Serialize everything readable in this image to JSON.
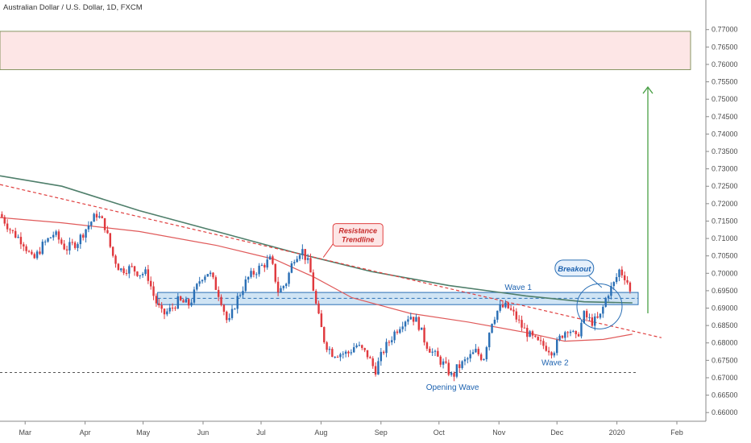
{
  "title": "Australian Dollar / U.S. Dollar, 1D, FXCM",
  "chart_data": {
    "type": "candlestick",
    "ylim": [
      0.6575,
      0.7785
    ],
    "y_ticks": [
      "0.77000",
      "0.76500",
      "0.76000",
      "0.75500",
      "0.75000",
      "0.74500",
      "0.74000",
      "0.73500",
      "0.73000",
      "0.72500",
      "0.72000",
      "0.71500",
      "0.71000",
      "0.70500",
      "0.70000",
      "0.69500",
      "0.69000",
      "0.68500",
      "0.68000",
      "0.67500",
      "0.67000",
      "0.66500",
      "0.66000"
    ],
    "x_labels": [
      {
        "label": "Mar",
        "day": 1
      },
      {
        "label": "Apr",
        "day": 32
      },
      {
        "label": "May",
        "day": 62
      },
      {
        "label": "Jun",
        "day": 93
      },
      {
        "label": "Jul",
        "day": 123
      },
      {
        "label": "Aug",
        "day": 154
      },
      {
        "label": "Sep",
        "day": 185
      },
      {
        "label": "Oct",
        "day": 215
      },
      {
        "label": "Nov",
        "day": 246
      },
      {
        "label": "Dec",
        "day": 276
      },
      {
        "label": "2020",
        "day": 307
      },
      {
        "label": "Feb",
        "day": 338
      }
    ],
    "x_range_days": [
      -12,
      353
    ],
    "closes_anchors": [
      [
        -12,
        0.717
      ],
      [
        -6,
        0.712
      ],
      [
        0,
        0.709
      ],
      [
        5,
        0.7035
      ],
      [
        10,
        0.708
      ],
      [
        16,
        0.7115
      ],
      [
        22,
        0.707
      ],
      [
        28,
        0.709
      ],
      [
        32,
        0.7125
      ],
      [
        38,
        0.717
      ],
      [
        42,
        0.714
      ],
      [
        46,
        0.7055
      ],
      [
        50,
        0.701
      ],
      [
        56,
        0.7015
      ],
      [
        60,
        0.7
      ],
      [
        64,
        0.7
      ],
      [
        68,
        0.6925
      ],
      [
        72,
        0.688
      ],
      [
        76,
        0.6895
      ],
      [
        80,
        0.692
      ],
      [
        86,
        0.691
      ],
      [
        92,
        0.699
      ],
      [
        96,
        0.7005
      ],
      [
        102,
        0.693
      ],
      [
        106,
        0.685
      ],
      [
        110,
        0.692
      ],
      [
        116,
        0.6985
      ],
      [
        122,
        0.7015
      ],
      [
        128,
        0.704
      ],
      [
        132,
        0.6945
      ],
      [
        136,
        0.6975
      ],
      [
        140,
        0.7045
      ],
      [
        144,
        0.707
      ],
      [
        148,
        0.702
      ],
      [
        152,
        0.689
      ],
      [
        156,
        0.68
      ],
      [
        160,
        0.677
      ],
      [
        164,
        0.677
      ],
      [
        168,
        0.677
      ],
      [
        172,
        0.6795
      ],
      [
        178,
        0.6765
      ],
      [
        182,
        0.672
      ],
      [
        186,
        0.6775
      ],
      [
        192,
        0.683
      ],
      [
        196,
        0.686
      ],
      [
        200,
        0.688
      ],
      [
        204,
        0.686
      ],
      [
        208,
        0.68
      ],
      [
        212,
        0.677
      ],
      [
        218,
        0.6735
      ],
      [
        222,
        0.67
      ],
      [
        224,
        0.6725
      ],
      [
        228,
        0.6745
      ],
      [
        234,
        0.6775
      ],
      [
        238,
        0.6755
      ],
      [
        242,
        0.686
      ],
      [
        246,
        0.69
      ],
      [
        250,
        0.6905
      ],
      [
        254,
        0.688
      ],
      [
        258,
        0.6845
      ],
      [
        262,
        0.682
      ],
      [
        266,
        0.68
      ],
      [
        270,
        0.679
      ],
      [
        274,
        0.6775
      ],
      [
        278,
        0.682
      ],
      [
        282,
        0.6845
      ],
      [
        286,
        0.681
      ],
      [
        290,
        0.688
      ],
      [
        294,
        0.686
      ],
      [
        298,
        0.687
      ],
      [
        302,
        0.694
      ],
      [
        306,
        0.6975
      ],
      [
        308,
        0.701
      ],
      [
        312,
        0.6985
      ],
      [
        314,
        0.694
      ]
    ],
    "ma_slow": [
      [
        -12,
        0.728
      ],
      [
        20,
        0.725
      ],
      [
        60,
        0.718
      ],
      [
        100,
        0.712
      ],
      [
        140,
        0.706
      ],
      [
        180,
        0.7005
      ],
      [
        220,
        0.6965
      ],
      [
        260,
        0.6935
      ],
      [
        290,
        0.6918
      ],
      [
        315,
        0.6915
      ]
    ],
    "ma_fast": [
      [
        -12,
        0.716
      ],
      [
        20,
        0.7145
      ],
      [
        60,
        0.712
      ],
      [
        100,
        0.708
      ],
      [
        130,
        0.704
      ],
      [
        150,
        0.699
      ],
      [
        170,
        0.693
      ],
      [
        200,
        0.6885
      ],
      [
        230,
        0.686
      ],
      [
        260,
        0.683
      ],
      [
        280,
        0.6805
      ],
      [
        300,
        0.681
      ],
      [
        315,
        0.6825
      ]
    ],
    "resistance_trendline": [
      [
        -12,
        0.7255
      ],
      [
        330,
        0.6815
      ]
    ],
    "support_level": 0.6715,
    "zone_band": [
      0.691,
      0.6945
    ],
    "zone_midline": 0.6928,
    "target_zone": [
      0.7585,
      0.7695
    ],
    "target_arrow": {
      "x_day": 323,
      "from": 0.6885,
      "to": 0.7535
    },
    "annotations": {
      "resistance": [
        "Resistance",
        "Trendline"
      ],
      "breakout": "Breakout",
      "wave1": "Wave 1",
      "wave2": "Wave 2",
      "opening_wave": "Opening Wave"
    }
  }
}
